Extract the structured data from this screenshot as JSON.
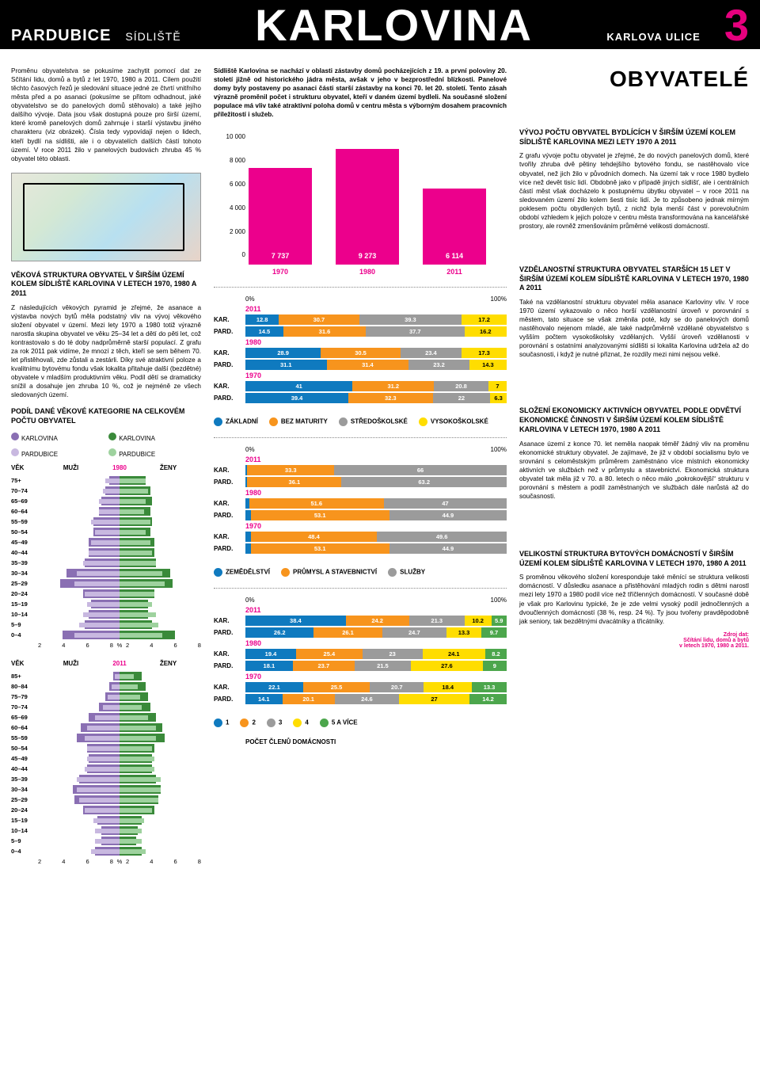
{
  "header": {
    "city": "PARDUBICE",
    "sidl": "SÍDLIŠTĚ",
    "main": "KARLOVINA",
    "street": "KARLOVA ULICE",
    "num": "3"
  },
  "colors": {
    "pink": "#ec008c",
    "blue": "#0f7abf",
    "orange": "#f7941d",
    "grey": "#9b9b9b",
    "yellow": "#ffdd00",
    "green": "#4ca64c",
    "purple_dark": "#8a6fb3",
    "purple_light": "#c8b8e0",
    "green_dark": "#3a8a3a",
    "green_light": "#9ed29e"
  },
  "intro": {
    "para1": "Proměnu obyvatelstva se pokusíme zachytit pomocí dat ze Sčítání lidu, domů a bytů z let 1970, 1980 a 2011. Cílem použití těchto časových řezů je sledování situace jedné ze čtvrtí vnitřního města před a po asanaci (pokusíme se přitom odhadnout, jaké obyvatelstvo se do panelových domů stěhovalo) a také jejího dalšího vývoje. Data jsou však dostupná pouze pro širší území, které kromě panelových domů zahrnuje i starší výstavbu jiného charakteru (viz obrázek). Čísla tedy vypovídají nejen o lidech, kteří bydlí na sídlišti, ale i o obyvatelích dalších částí tohoto území. V roce 2011 žilo v panelových budovách zhruba 45 % obyvatel této oblasti.",
    "para2": "Sídliště Karlovina se nachází v oblasti zástavby domů pocházejících z 19. a první poloviny 20. století jižně od historického jádra města, avšak v jeho v bezprostřední blízkosti. Panelové domy byly postaveny po asanaci části starší zástavby na konci 70. let 20. století. Tento zásah výrazně proměnil počet i strukturu obyvatel, kteří v daném území bydleli. Na současné složení populace má vliv také atraktivní poloha domů v centru města s výborným dosahem pracovních příležitostí i služeb."
  },
  "right_title": "OBYVATELÉ",
  "age_section": {
    "title": "VĚKOVÁ STRUKTURA OBYVATEL V ŠIRŠÍM ÚZEMÍ KOLEM SÍDLIŠTĚ KARLOVINA V LETECH 1970, 1980 A 2011",
    "body": "Z následujících věkových pyramid je zřejmé, že asanace a výstavba nových bytů měla podstatný vliv na vývoj věkového složení obyvatel v území. Mezi lety 1970 a 1980 totiž výrazně narostla skupina obyvatel ve věku 25–34 let a dětí do pěti let, což kontrastovalo s do té doby nadprůměrně starší populací. Z grafu za rok 2011 pak vidíme, že mnozí z těch, kteří se sem během 70. let přistěhovali, zde zůstali a zestárli. Díky své atraktivní poloze a kvalitnímu bytovému fondu však lokalita přitahuje další (bezdětné) obyvatele v mladším produktivním věku. Podíl dětí se dramaticky snížil a dosahuje jen zhruba 10 %, což je nejméně ze všech sledovaných území.",
    "legend_title": "PODÍL DANÉ VĚKOVÉ KATEGORIE NA CELKOVÉM POČTU OBYVATEL",
    "leg_kar": "KARLOVINA",
    "leg_pard": "PARDUBICE",
    "head_vek": "VĚK",
    "head_muzi": "MUŽI",
    "head_zeny": "ŽENY"
  },
  "pyramid_colors": {
    "kar_m": "#8a6fb3",
    "kar_f": "#3a8a3a",
    "pard_m": "#c8b8e0",
    "pard_f": "#9ed29e"
  },
  "pyramid_1980": {
    "year": "1980",
    "x_ticks": [
      "8",
      "6",
      "4",
      "2",
      "%",
      "2",
      "4",
      "6",
      "8"
    ],
    "rows": [
      {
        "label": "75+",
        "km": 1.0,
        "pm": 1.4,
        "kf": 2.6,
        "pf": 2.6
      },
      {
        "label": "70–74",
        "km": 1.4,
        "pm": 1.6,
        "kf": 3.0,
        "pf": 2.8
      },
      {
        "label": "65–69",
        "km": 1.8,
        "pm": 2.0,
        "kf": 3.2,
        "pf": 2.6
      },
      {
        "label": "60–64",
        "km": 2.0,
        "pm": 2.0,
        "kf": 3.0,
        "pf": 2.4
      },
      {
        "label": "55–59",
        "km": 2.6,
        "pm": 2.8,
        "kf": 3.2,
        "pf": 3.0
      },
      {
        "label": "50–54",
        "km": 2.6,
        "pm": 2.4,
        "kf": 3.0,
        "pf": 2.6
      },
      {
        "label": "45–49",
        "km": 3.0,
        "pm": 2.8,
        "kf": 3.4,
        "pf": 3.0
      },
      {
        "label": "40–44",
        "km": 3.0,
        "pm": 3.0,
        "kf": 3.4,
        "pf": 3.2
      },
      {
        "label": "35–39",
        "km": 3.4,
        "pm": 3.6,
        "kf": 3.6,
        "pf": 3.6
      },
      {
        "label": "30–34",
        "km": 5.2,
        "pm": 4.2,
        "kf": 5.0,
        "pf": 4.2
      },
      {
        "label": "25–29",
        "km": 5.8,
        "pm": 4.4,
        "kf": 5.2,
        "pf": 4.4
      },
      {
        "label": "20–24",
        "km": 3.6,
        "pm": 3.4,
        "kf": 3.4,
        "pf": 3.4
      },
      {
        "label": "15–19",
        "km": 2.8,
        "pm": 3.2,
        "kf": 2.8,
        "pf": 3.2
      },
      {
        "label": "10–14",
        "km": 3.0,
        "pm": 3.6,
        "kf": 2.8,
        "pf": 3.6
      },
      {
        "label": "5–9",
        "km": 3.4,
        "pm": 4.0,
        "kf": 3.2,
        "pf": 3.8
      },
      {
        "label": "0–4",
        "km": 5.6,
        "pm": 4.4,
        "kf": 5.4,
        "pf": 4.2
      }
    ]
  },
  "pyramid_2011": {
    "year": "2011",
    "x_ticks": [
      "8",
      "6",
      "4",
      "2",
      "%",
      "2",
      "4",
      "6",
      "8"
    ],
    "rows": [
      {
        "label": "85+",
        "km": 0.6,
        "pm": 0.5,
        "kf": 2.2,
        "pf": 1.4
      },
      {
        "label": "80–84",
        "km": 1.0,
        "pm": 0.8,
        "kf": 2.6,
        "pf": 1.8
      },
      {
        "label": "75–79",
        "km": 1.4,
        "pm": 1.2,
        "kf": 2.8,
        "pf": 2.0
      },
      {
        "label": "70–74",
        "km": 2.0,
        "pm": 1.6,
        "kf": 3.0,
        "pf": 2.2
      },
      {
        "label": "65–69",
        "km": 3.0,
        "pm": 2.4,
        "kf": 3.6,
        "pf": 2.8
      },
      {
        "label": "60–64",
        "km": 3.8,
        "pm": 3.2,
        "kf": 4.2,
        "pf": 3.6
      },
      {
        "label": "55–59",
        "km": 4.2,
        "pm": 3.4,
        "kf": 4.4,
        "pf": 3.6
      },
      {
        "label": "50–54",
        "km": 3.2,
        "pm": 3.2,
        "kf": 3.4,
        "pf": 3.2
      },
      {
        "label": "45–49",
        "km": 3.0,
        "pm": 3.2,
        "kf": 3.2,
        "pf": 3.4
      },
      {
        "label": "40–44",
        "km": 3.2,
        "pm": 3.4,
        "kf": 3.2,
        "pf": 3.4
      },
      {
        "label": "35–39",
        "km": 4.0,
        "pm": 4.2,
        "kf": 3.6,
        "pf": 4.0
      },
      {
        "label": "30–34",
        "km": 4.6,
        "pm": 4.2,
        "kf": 4.0,
        "pf": 4.0
      },
      {
        "label": "25–29",
        "km": 4.4,
        "pm": 4.0,
        "kf": 3.8,
        "pf": 3.8
      },
      {
        "label": "20–24",
        "km": 3.6,
        "pm": 3.4,
        "kf": 3.4,
        "pf": 3.2
      },
      {
        "label": "15–19",
        "km": 2.2,
        "pm": 2.6,
        "kf": 2.2,
        "pf": 2.4
      },
      {
        "label": "10–14",
        "km": 1.8,
        "pm": 2.4,
        "kf": 1.8,
        "pf": 2.2
      },
      {
        "label": "5–9",
        "km": 1.8,
        "pm": 2.4,
        "kf": 1.6,
        "pf": 2.2
      },
      {
        "label": "0–4",
        "km": 2.4,
        "pm": 2.8,
        "kf": 2.2,
        "pf": 2.6
      }
    ]
  },
  "pop_chart": {
    "title": "VÝVOJ POČTU OBYVATEL BYDLÍCÍCH V ŠIRŠÍM ÚZEMÍ KOLEM SÍDLIŠTĚ KARLOVINA MEZI LETY 1970 A 2011",
    "body": "Z grafu vývoje počtu obyvatel je zřejmé, že do nových panelových domů, které tvořily zhruba dvě pětiny tehdejšího bytového fondu, se nastěhovalo více obyvatel, než jich žilo v původních domech. Na území tak v roce 1980 bydlelo více než devět tisíc lidí. Obdobně jako v případě jiných sídlišť, ale i centrálních částí měst však docházelo k postupnému úbytku obyvatel – v roce 2011 na sledovaném území žilo kolem šesti tisíc lidí. Je to způsobeno jednak mírným poklesem počtu obydlených bytů, z nichž byla menší část v porevolučním období vzhledem k jejich poloze v centru města transformována na kancelářské prostory, ale rovněž zmenšováním průměrné velikosti domácností.",
    "ymax": 10000,
    "ylabels": [
      "0",
      "2 000",
      "4 000",
      "6 000",
      "8 000",
      "10 000"
    ],
    "bars": [
      {
        "year": "1970",
        "value": 7737,
        "label": "7 737"
      },
      {
        "year": "1980",
        "value": 9273,
        "label": "9 273"
      },
      {
        "year": "2011",
        "value": 6114,
        "label": "6 114"
      }
    ]
  },
  "edu": {
    "title": "VZDĚLANOSTNÍ STRUKTURA OBYVATEL STARŠÍCH 15 LET V ŠIRŠÍM ÚZEMÍ KOLEM SÍDLIŠTĚ KARLOVINA V LETECH 1970, 1980 A 2011",
    "body": "Také na vzdělanostní strukturu obyvatel měla asanace Karloviny vliv. V roce 1970 území vykazovalo o něco horší vzdělanostní úroveň v porovnání s městem, tato situace se však změnila poté, kdy se do panelových domů nastěhovalo nejenom mladé, ale také nadprůměrně vzdělané obyvatelstvo s vyšším počtem vysokoškolsky vzdělaných. Vyšší úroveň vzdělanosti v porovnání s ostatními analyzovanými sídlišti si lokalita Karlovina udržela až do současnosti, i když je nutné přiznat, že rozdíly mezi nimi nejsou velké.",
    "axis0": "0%",
    "axis100": "100%",
    "legend": [
      "ZÁKLADNÍ",
      "BEZ MATURITY",
      "STŘEDOŠKOLSKÉ",
      "VYSOKOŠKOLSKÉ"
    ],
    "colors": [
      "#0f7abf",
      "#f7941d",
      "#9b9b9b",
      "#ffdd00"
    ],
    "groups": [
      {
        "year": "2011",
        "rows": [
          {
            "label": "KAR.",
            "vals": [
              12.8,
              30.7,
              39.3,
              17.2
            ]
          },
          {
            "label": "PARD.",
            "vals": [
              14.5,
              31.6,
              37.7,
              16.2
            ]
          }
        ]
      },
      {
        "year": "1980",
        "rows": [
          {
            "label": "KAR.",
            "vals": [
              28.9,
              30.5,
              23.4,
              17.3
            ]
          },
          {
            "label": "PARD.",
            "vals": [
              31.1,
              31.4,
              23.2,
              14.3
            ]
          }
        ]
      },
      {
        "year": "1970",
        "rows": [
          {
            "label": "KAR.",
            "vals": [
              41,
              31.2,
              20.8,
              7
            ]
          },
          {
            "label": "PARD.",
            "vals": [
              39.4,
              32.3,
              22,
              6.3
            ]
          }
        ]
      }
    ]
  },
  "econ": {
    "title": "SLOŽENÍ EKONOMICKY AKTIVNÍCH OBYVATEL PODLE ODVĚTVÍ EKONOMICKÉ ČINNOSTI V ŠIRŠÍM ÚZEMÍ KOLEM SÍDLIŠTĚ KARLOVINA V LETECH 1970, 1980 A 2011",
    "body": "Asanace území z konce 70. let neměla naopak téměř žádný vliv na proměnu ekonomické struktury obyvatel. Je zajímavé, že již v období socialismu bylo ve srovnání s celoměstským průměrem zaměstnáno více místních ekonomicky aktivních ve službách než v průmyslu a stavebnictví. Ekonomická struktura obyvatel tak měla již v 70. a 80. letech o něco málo „pokrokovější“ strukturu v porovnání s městem a podíl zaměstnaných ve službách dále narůstá až do současnosti.",
    "legend": [
      "ZEMĚDĚLSTVÍ",
      "PRŮMYSL A STAVEBNICTVÍ",
      "SLUŽBY"
    ],
    "colors": [
      "#0f7abf",
      "#f7941d",
      "#9b9b9b"
    ],
    "groups": [
      {
        "year": "2011",
        "rows": [
          {
            "label": "KAR.",
            "vals": [
              0.7,
              33.3,
              66
            ]
          },
          {
            "label": "PARD.",
            "vals": [
              0.7,
              36.1,
              63.2
            ]
          }
        ]
      },
      {
        "year": "1980",
        "rows": [
          {
            "label": "KAR.",
            "vals": [
              1.4,
              51.6,
              47
            ]
          },
          {
            "label": "PARD.",
            "vals": [
              2.0,
              53.1,
              44.9
            ]
          }
        ]
      },
      {
        "year": "1970",
        "rows": [
          {
            "label": "KAR.",
            "vals": [
              2.0,
              48.4,
              49.6
            ]
          },
          {
            "label": "PARD.",
            "vals": [
              2.0,
              53.1,
              44.9
            ]
          }
        ]
      }
    ]
  },
  "house": {
    "title": "VELIKOSTNÍ STRUKTURA BYTOVÝCH DOMÁCNOSTÍ V ŠIRŠÍM ÚZEMÍ KOLEM SÍDLIŠTĚ KARLOVINA V LETECH 1970, 1980 A 2011",
    "body": "S proměnou věkového složení koresponduje také měnící se struktura velikosti domácností. V důsledku asanace a přistěhování mladých rodin s dětmi narostl mezi lety 1970 a 1980 podíl více než tříčlenných domácností. V současné době je však pro Karlovinu typické, že je zde velmi vysoký podíl jednočlenných a dvoučlenných domácností (38 %, resp. 24 %). Ty jsou tvořeny pravděpodobně jak seniory, tak bezdětnými dvacátníky a třicátníky.",
    "legend": [
      "1",
      "2",
      "3",
      "4",
      "5 A VÍCE"
    ],
    "legend_title": "POČET ČLENŮ DOMÁCNOSTI",
    "colors": [
      "#0f7abf",
      "#f7941d",
      "#9b9b9b",
      "#ffdd00",
      "#4ca64c"
    ],
    "groups": [
      {
        "year": "2011",
        "rows": [
          {
            "label": "KAR.",
            "vals": [
              38.4,
              24.2,
              21.3,
              10.2,
              5.9
            ]
          },
          {
            "label": "PARD.",
            "vals": [
              26.2,
              26.1,
              24.7,
              13.3,
              9.7
            ]
          }
        ]
      },
      {
        "year": "1980",
        "rows": [
          {
            "label": "KAR.",
            "vals": [
              19.4,
              25.4,
              23,
              24.1,
              8.2
            ]
          },
          {
            "label": "PARD.",
            "vals": [
              18.1,
              23.7,
              21.5,
              27.6,
              9
            ]
          }
        ]
      },
      {
        "year": "1970",
        "rows": [
          {
            "label": "KAR.",
            "vals": [
              22.1,
              25.5,
              20.7,
              18.4,
              13.3
            ]
          },
          {
            "label": "PARD.",
            "vals": [
              14.1,
              20.1,
              24.6,
              27,
              14.2
            ]
          }
        ]
      }
    ]
  },
  "footer": {
    "l1": "Zdroj dat:",
    "l2": "Sčítání lidu, domů a bytů",
    "l3": "v letech 1970, 1980 a 2011."
  }
}
